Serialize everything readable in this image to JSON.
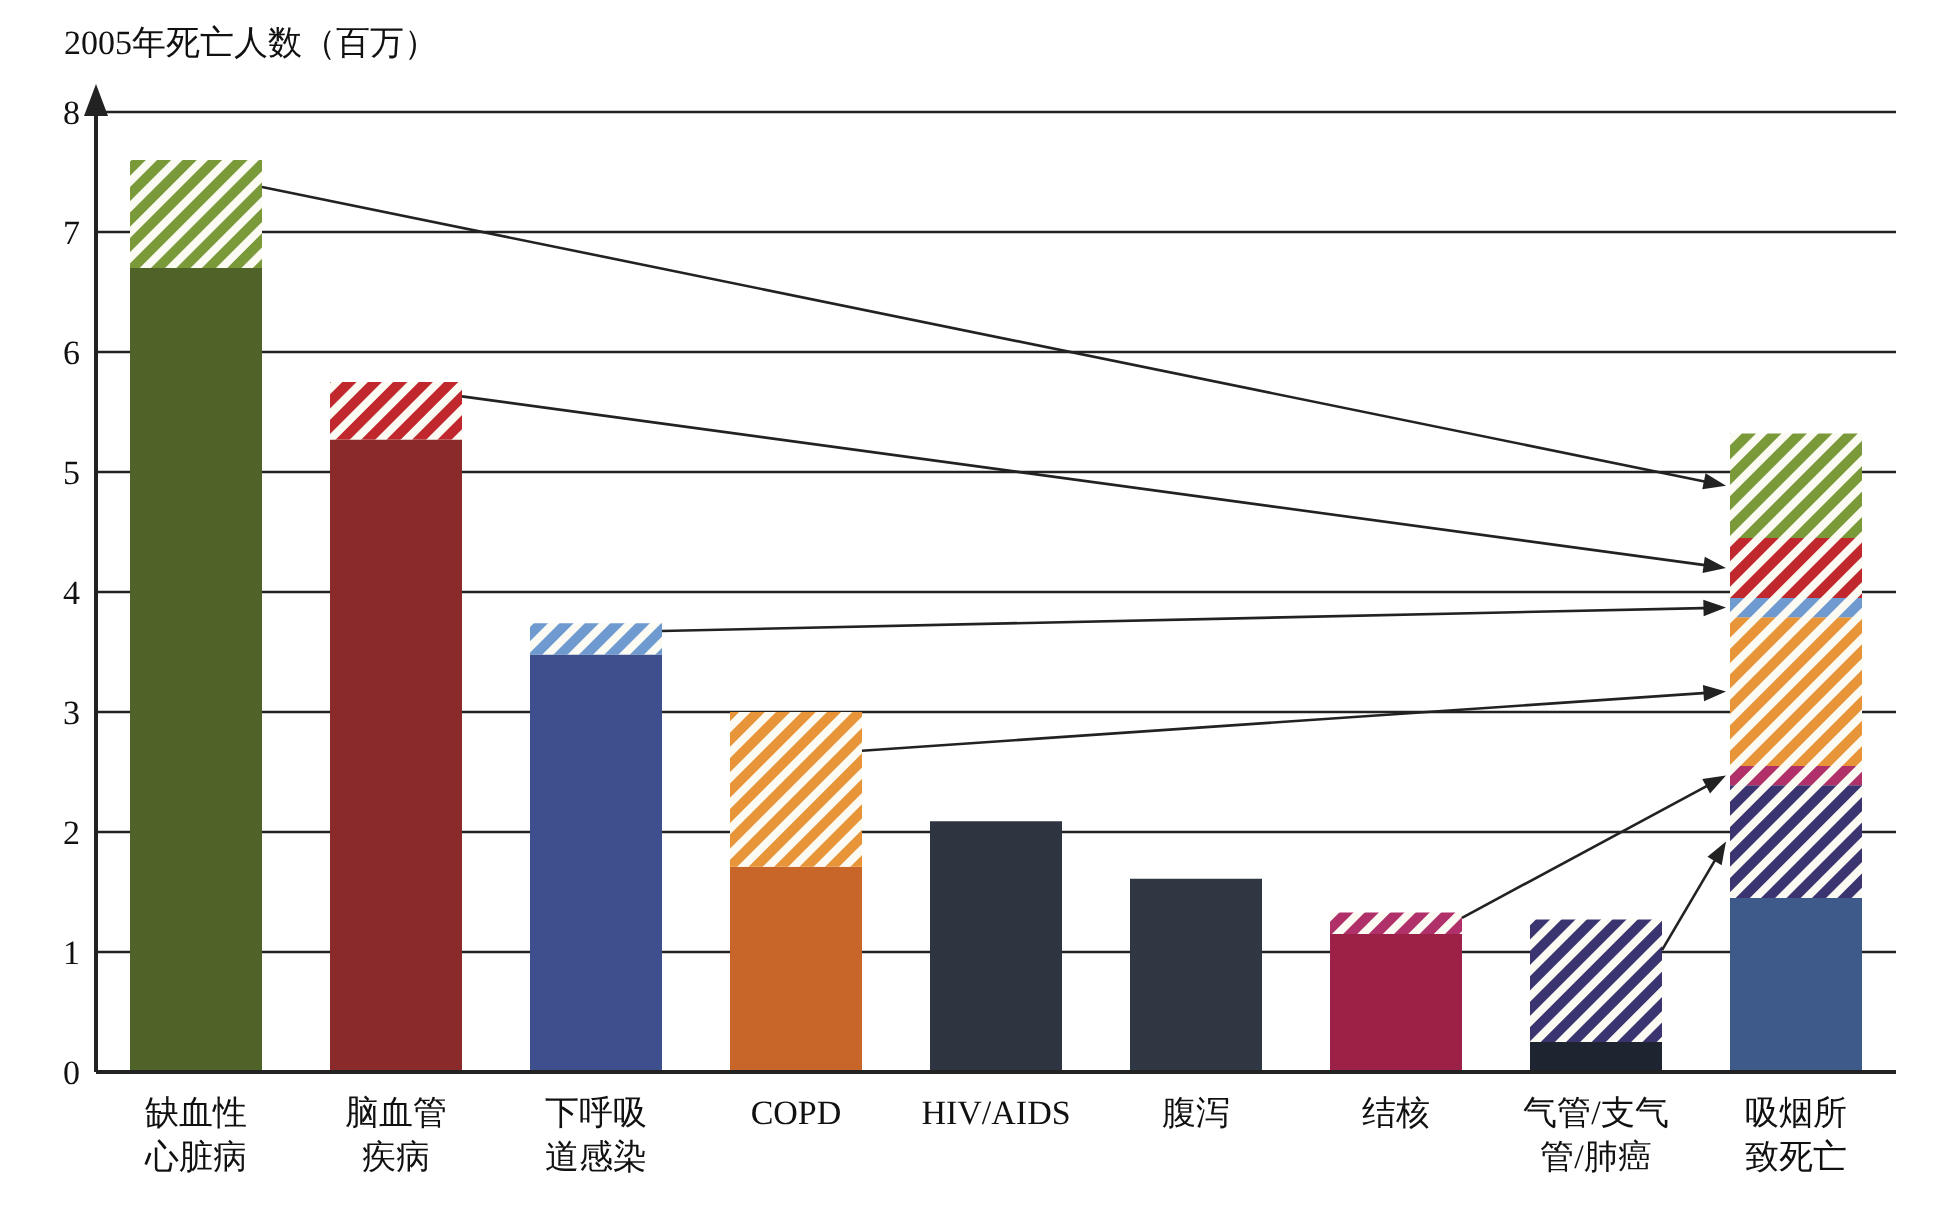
{
  "chart_data": {
    "type": "bar",
    "stacked": true,
    "ylabel": "2005年死亡人数（百万）",
    "categories": [
      "缺血性心脏病",
      "脑血管疾病",
      "下呼吸道感染",
      "COPD",
      "HIV/AIDS",
      "腹泻",
      "结核",
      "气管/支气管/肺癌",
      "吸烟所致死亡"
    ],
    "series": [
      {
        "colors": [
          "#4f6228",
          "#8b2a2a",
          "#3d4f8c",
          "#c8662a",
          "#2e3440",
          "#2f3742",
          "#9b2146",
          "#1f2530",
          "#3d5a8a"
        ],
        "values": [
          6.7,
          5.27,
          3.48,
          1.71,
          2.09,
          1.61,
          1.15,
          0.25,
          1.45
        ]
      },
      {
        "color": "#3a3470",
        "values": [
          null,
          null,
          null,
          null,
          null,
          null,
          null,
          1.02,
          0.94
        ]
      },
      {
        "color": "#b0306a",
        "values": [
          null,
          null,
          null,
          null,
          null,
          null,
          0.18,
          null,
          0.16
        ]
      },
      {
        "color": "#e8953a",
        "values": [
          null,
          null,
          null,
          1.29,
          null,
          null,
          null,
          null,
          1.24
        ]
      },
      {
        "color": "#6e9ad0",
        "values": [
          null,
          null,
          0.26,
          null,
          null,
          null,
          null,
          null,
          0.16
        ]
      },
      {
        "color": "#c0282d",
        "values": [
          null,
          0.48,
          null,
          null,
          null,
          null,
          null,
          null,
          0.5
        ]
      },
      {
        "color": "#7a9a3a",
        "values": [
          0.9,
          null,
          null,
          null,
          null,
          null,
          null,
          null,
          0.87
        ]
      }
    ],
    "ylim": [
      0,
      8
    ],
    "yticks": [
      0,
      1,
      2,
      3,
      4,
      5,
      6,
      7,
      8
    ],
    "grid": "y",
    "legend": false
  }
}
